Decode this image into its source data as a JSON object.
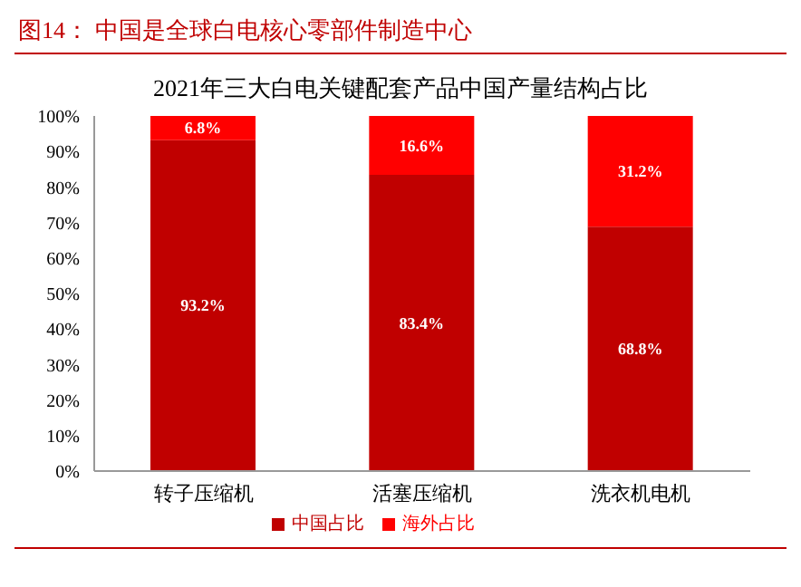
{
  "chart_data": {
    "type": "bar",
    "title": "图14：  中国是全球白电核心零部件制造中心",
    "subtitle": "2021年三大白电关键配套产品中国产量结构占比",
    "categories": [
      "转子压缩机",
      "活塞压缩机",
      "洗衣机电机"
    ],
    "series": [
      {
        "name": "中国占比",
        "color": "#c00000",
        "values": [
          93.2,
          83.4,
          68.8
        ],
        "value_labels": [
          "93.2%",
          "83.4%",
          "68.8%"
        ]
      },
      {
        "name": "海外占比",
        "color": "#ff0000",
        "values": [
          6.8,
          16.6,
          31.2
        ],
        "value_labels": [
          "6.8%",
          "16.6%",
          "31.2%"
        ]
      }
    ],
    "stacked": true,
    "ylim": [
      0,
      100
    ],
    "yticks": [
      {
        "value": 0,
        "label": "0%"
      },
      {
        "value": 10,
        "label": "10%"
      },
      {
        "value": 20,
        "label": "20%"
      },
      {
        "value": 30,
        "label": "30%"
      },
      {
        "value": 40,
        "label": "40%"
      },
      {
        "value": 50,
        "label": "50%"
      },
      {
        "value": 60,
        "label": "60%"
      },
      {
        "value": 70,
        "label": "70%"
      },
      {
        "value": 80,
        "label": "80%"
      },
      {
        "value": 90,
        "label": "90%"
      },
      {
        "value": 100,
        "label": "100%"
      }
    ],
    "legend": "bottom"
  }
}
